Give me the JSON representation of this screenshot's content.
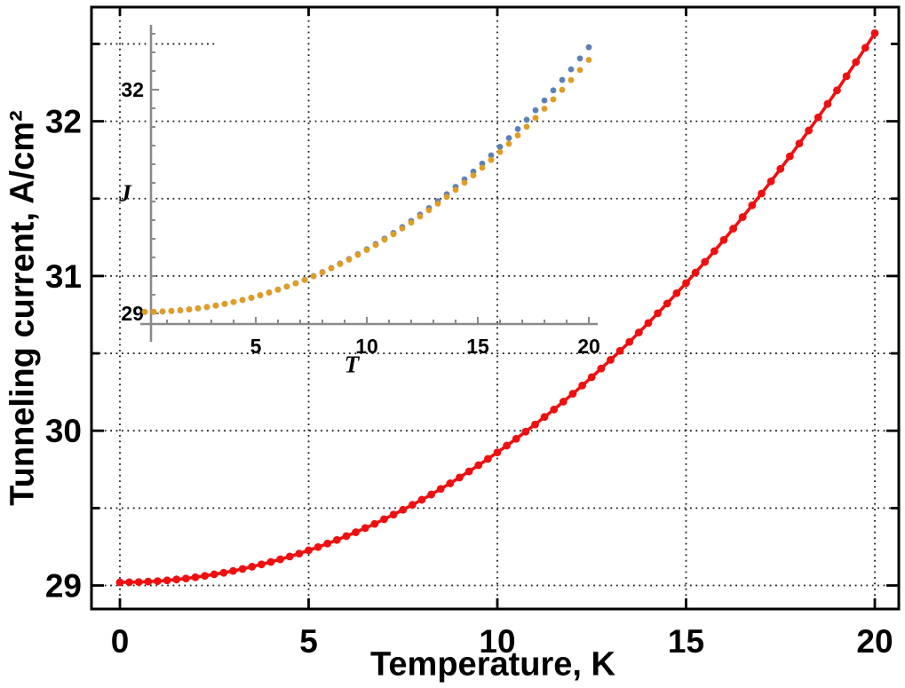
{
  "chart_data": {
    "type": "scatter",
    "main": {
      "xlabel": "Temperature, K",
      "ylabel": "Tunneling current, A/cm²",
      "xlim": [
        -0.75,
        20.6
      ],
      "ylim": [
        28.85,
        32.73
      ],
      "xticks": [
        0,
        5,
        10,
        15,
        20
      ],
      "yticks": [
        29,
        30,
        31,
        32
      ],
      "yticks_minor": [
        29.5,
        30.5,
        31.5,
        32.5
      ],
      "grid_x": [
        0,
        5,
        10,
        15,
        20
      ],
      "grid_y": [
        29,
        29.5,
        30,
        30.5,
        31,
        31.5,
        32,
        32.5
      ],
      "grid_style": "dotted",
      "frame": true,
      "series": [
        {
          "name": "tunneling-current-vs-temperature",
          "color": "#ee1010",
          "marker": "circle",
          "joined": true,
          "x": [
            0,
            0.25,
            0.5,
            0.75,
            1,
            1.25,
            1.5,
            1.75,
            2,
            2.25,
            2.5,
            2.75,
            3,
            3.25,
            3.5,
            3.75,
            4,
            4.25,
            4.5,
            4.75,
            5,
            5.25,
            5.5,
            5.75,
            6,
            6.25,
            6.5,
            6.75,
            7,
            7.25,
            7.5,
            7.75,
            8,
            8.25,
            8.5,
            8.75,
            9,
            9.25,
            9.5,
            9.75,
            10,
            10.25,
            10.5,
            10.75,
            11,
            11.25,
            11.5,
            11.75,
            12,
            12.25,
            12.5,
            12.75,
            13,
            13.25,
            13.5,
            13.75,
            14,
            14.25,
            14.5,
            14.75,
            15,
            15.25,
            15.5,
            15.75,
            16,
            16.25,
            16.5,
            16.75,
            17,
            17.25,
            17.5,
            17.75,
            18,
            18.25,
            18.5,
            18.75,
            19,
            19.25,
            19.5,
            19.75,
            20
          ],
          "y": [
            29.02,
            29.021,
            29.022,
            29.025,
            29.028,
            29.033,
            29.039,
            29.045,
            29.053,
            29.062,
            29.072,
            29.082,
            29.094,
            29.107,
            29.121,
            29.136,
            29.152,
            29.169,
            29.187,
            29.206,
            29.227,
            29.248,
            29.271,
            29.294,
            29.319,
            29.344,
            29.371,
            29.398,
            29.428,
            29.458,
            29.489,
            29.521,
            29.554,
            29.588,
            29.624,
            29.66,
            29.698,
            29.737,
            29.777,
            29.818,
            29.86,
            29.904,
            29.948,
            29.994,
            30.04,
            30.089,
            30.137,
            30.188,
            30.239,
            30.292,
            30.346,
            30.402,
            30.458,
            30.516,
            30.574,
            30.635,
            30.696,
            30.759,
            30.822,
            30.889,
            30.954,
            31.022,
            31.091,
            31.161,
            31.233,
            31.306,
            31.381,
            31.457,
            31.533,
            31.612,
            31.692,
            31.773,
            31.856,
            31.94,
            32.025,
            32.112,
            32.2,
            32.291,
            32.382,
            32.475,
            32.569
          ]
        }
      ]
    },
    "inset": {
      "xlabel": "T",
      "ylabel": "J",
      "xticks": [
        5,
        10,
        15,
        20
      ],
      "xticks_minor_step": 1,
      "yticks": [
        29,
        32
      ],
      "yticks_minor_step": 0.25,
      "axes_color": "#8a8a8a",
      "series": [
        {
          "name": "inset-series-blue",
          "color": "#5e81b5",
          "marker": "circle",
          "joined": false,
          "x": [
            0,
            0.4,
            0.8,
            1.2,
            1.6,
            2,
            2.4,
            2.8,
            3.2,
            3.6,
            4,
            4.4,
            4.8,
            5.2,
            5.6,
            6,
            6.4,
            6.8,
            7.2,
            7.6,
            8,
            8.4,
            8.8,
            9.2,
            9.6,
            10,
            10.4,
            10.8,
            11.2,
            11.6,
            12,
            12.4,
            12.8,
            13.2,
            13.6,
            14,
            14.4,
            14.8,
            15.2,
            15.6,
            16,
            16.4,
            16.8,
            17.2,
            17.6,
            18,
            18.4,
            18.8,
            19.2,
            19.6,
            20
          ],
          "y": [
            29.02,
            29.021,
            29.025,
            29.032,
            29.041,
            29.053,
            29.067,
            29.085,
            29.105,
            29.127,
            29.152,
            29.18,
            29.21,
            29.244,
            29.28,
            29.319,
            29.36,
            29.404,
            29.451,
            29.501,
            29.554,
            29.609,
            29.668,
            29.729,
            29.793,
            29.86,
            29.93,
            30.003,
            30.078,
            30.157,
            30.239,
            30.324,
            30.412,
            30.504,
            30.598,
            30.696,
            30.797,
            30.901,
            31.008,
            31.119,
            31.233,
            31.351,
            31.472,
            31.596,
            31.724,
            31.856,
            31.991,
            32.13,
            32.272,
            32.419,
            32.569
          ]
        },
        {
          "name": "inset-series-orange",
          "color": "#e19c24",
          "marker": "circle",
          "joined": false,
          "x": [
            0,
            0.4,
            0.8,
            1.2,
            1.6,
            2,
            2.4,
            2.8,
            3.2,
            3.6,
            4,
            4.4,
            4.8,
            5.2,
            5.6,
            6,
            6.4,
            6.8,
            7.2,
            7.6,
            8,
            8.4,
            8.8,
            9.2,
            9.6,
            10,
            10.4,
            10.8,
            11.2,
            11.6,
            12,
            12.4,
            12.8,
            13.2,
            13.6,
            14,
            14.4,
            14.8,
            15.2,
            15.6,
            16,
            16.4,
            16.8,
            17.2,
            17.6,
            18,
            18.4,
            18.8,
            19.2,
            19.6,
            20
          ],
          "y": [
            29.02,
            29.021,
            29.025,
            29.032,
            29.041,
            29.053,
            29.067,
            29.085,
            29.104,
            29.127,
            29.152,
            29.179,
            29.209,
            29.243,
            29.279,
            29.318,
            29.359,
            29.402,
            29.448,
            29.497,
            29.549,
            29.604,
            29.661,
            29.721,
            29.784,
            29.85,
            29.917,
            29.989,
            30.062,
            30.138,
            30.217,
            30.299,
            30.384,
            30.472,
            30.562,
            30.656,
            30.752,
            30.85,
            30.952,
            31.057,
            31.164,
            31.274,
            31.387,
            31.503,
            31.622,
            31.744,
            31.869,
            31.998,
            32.129,
            32.263,
            32.399
          ]
        }
      ]
    },
    "colors": {
      "main_series": "#ee1010",
      "inset_blue": "#5e81b5",
      "inset_orange": "#e19c24",
      "frame": "#000000",
      "grid": "#1a1a1a",
      "inset_axes": "#8a8a8a"
    }
  }
}
